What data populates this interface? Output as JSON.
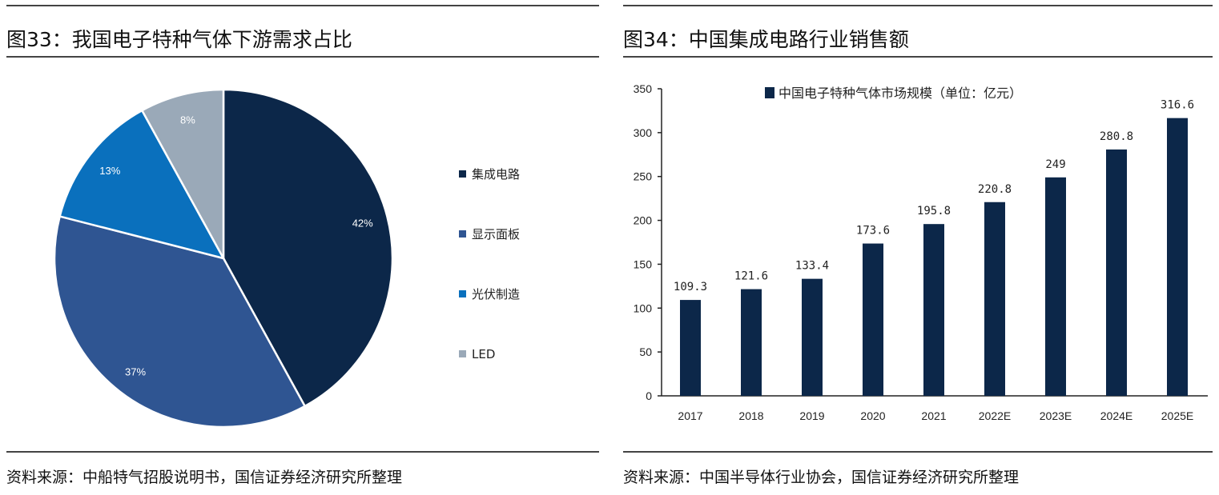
{
  "left": {
    "title": "图33：我国电子特种气体下游需求占比",
    "source": "资料来源：中船特气招股说明书，国信证券经济研究所整理"
  },
  "right": {
    "title": "图34：中国集成电路行业销售额",
    "source": "资料来源：中国半导体行业协会，国信证券经济研究所整理"
  },
  "chart_data": [
    {
      "type": "pie",
      "title": "我国电子特种气体下游需求占比",
      "labels": [
        "集成电路",
        "显示面板",
        "光伏制造",
        "LED"
      ],
      "values": [
        42,
        37,
        13,
        8
      ],
      "value_labels": [
        "42%",
        "37%",
        "13%",
        "8%"
      ],
      "colors": [
        "#0c2749",
        "#2f5592",
        "#0a70bd",
        "#9aa9b8"
      ],
      "legend": "right"
    },
    {
      "type": "bar",
      "title": "中国集成电路行业销售额",
      "legend_label": "中国电子特种气体市场规模（单位：亿元）",
      "categories": [
        "2017",
        "2018",
        "2019",
        "2020",
        "2021",
        "2022E",
        "2023E",
        "2024E",
        "2025E"
      ],
      "values": [
        109.3,
        121.6,
        133.4,
        173.6,
        195.8,
        220.8,
        249,
        280.8,
        316.6
      ],
      "value_labels": [
        "109.3",
        "121.6",
        "133.4",
        "173.6",
        "195.8",
        "220.8",
        "249",
        "280.8",
        "316.6"
      ],
      "ylim": [
        0,
        350
      ],
      "yticks": [
        "0",
        "50",
        "100",
        "150",
        "200",
        "250",
        "300",
        "350"
      ],
      "color": "#0c2749",
      "grid": false,
      "legend": "top"
    }
  ]
}
